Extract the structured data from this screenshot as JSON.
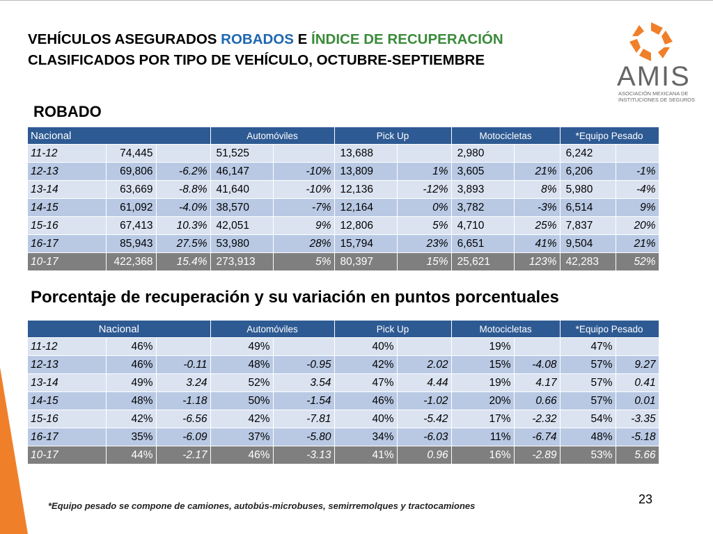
{
  "title": {
    "line1_part1": "VEHÍCULOS ASEGURADOS ",
    "line1_blue": "ROBADOS",
    "line1_part2": " E ",
    "line1_green": "ÍNDICE  DE RECUPERACIÓN",
    "line2": "CLASIFICADOS POR TIPO DE VEHÍCULO, OCTUBRE-SEPTIEMBRE"
  },
  "logo": {
    "word": "AMIS",
    "sub_line1": "ASOCIACIÓN MEXICANA DE",
    "sub_line2": "INSTITUCIONES DE SEGUROS",
    "accent": "#f07f2a"
  },
  "robado": {
    "heading": "ROBADO",
    "headers": [
      "Nacional",
      "Automóviles",
      "Pick Up",
      "Motocicletas",
      "*Equipo Pesado"
    ],
    "rows": [
      {
        "yr": "11-12",
        "nac": "74,445",
        "nac_v": "",
        "aut": "51,525",
        "aut_v": "",
        "pick": "13,688",
        "pick_v": "",
        "moto": "2,980",
        "moto_v": "",
        "eq": "6,242",
        "eq_v": ""
      },
      {
        "yr": "12-13",
        "nac": "69,806",
        "nac_v": "-6.2%",
        "aut": "46,147",
        "aut_v": "-10%",
        "pick": "13,809",
        "pick_v": "1%",
        "moto": "3,605",
        "moto_v": "21%",
        "eq": "6,206",
        "eq_v": "-1%"
      },
      {
        "yr": "13-14",
        "nac": "63,669",
        "nac_v": "-8.8%",
        "aut": "41,640",
        "aut_v": "-10%",
        "pick": "12,136",
        "pick_v": "-12%",
        "moto": "3,893",
        "moto_v": "8%",
        "eq": "5,980",
        "eq_v": "-4%"
      },
      {
        "yr": "14-15",
        "nac": "61,092",
        "nac_v": "-4.0%",
        "aut": "38,570",
        "aut_v": "-7%",
        "pick": "12,164",
        "pick_v": "0%",
        "moto": "3,782",
        "moto_v": "-3%",
        "eq": "6,514",
        "eq_v": "9%"
      },
      {
        "yr": "15-16",
        "nac": "67,413",
        "nac_v": "10.3%",
        "aut": "42,051",
        "aut_v": "9%",
        "pick": "12,806",
        "pick_v": "5%",
        "moto": "4,710",
        "moto_v": "25%",
        "eq": "7,837",
        "eq_v": "20%"
      },
      {
        "yr": "16-17",
        "nac": "85,943",
        "nac_v": "27.5%",
        "aut": "53,980",
        "aut_v": "28%",
        "pick": "15,794",
        "pick_v": "23%",
        "moto": "6,651",
        "moto_v": "41%",
        "eq": "9,504",
        "eq_v": "21%"
      },
      {
        "yr": "10-17",
        "nac": "422,368",
        "nac_v": "15.4%",
        "aut": "273,913",
        "aut_v": "5%",
        "pick": "80,397",
        "pick_v": "15%",
        "moto": "25,621",
        "moto_v": "123%",
        "eq": "42,283",
        "eq_v": "52%"
      }
    ]
  },
  "recuperacion": {
    "heading": "Porcentaje  de recuperación y su variación en puntos porcentuales",
    "headers": [
      "Nacional",
      "Automóviles",
      "Pick Up",
      "Motocicletas",
      "*Equipo Pesado"
    ],
    "rows": [
      {
        "yr": "11-12",
        "nac": "46%",
        "nac_v": "",
        "aut": "49%",
        "aut_v": "",
        "pick": "40%",
        "pick_v": "",
        "moto": "19%",
        "moto_v": "",
        "eq": "47%",
        "eq_v": ""
      },
      {
        "yr": "12-13",
        "nac": "46%",
        "nac_v": "-0.11",
        "aut": "48%",
        "aut_v": "-0.95",
        "pick": "42%",
        "pick_v": "2.02",
        "moto": "15%",
        "moto_v": "-4.08",
        "eq": "57%",
        "eq_v": "9.27"
      },
      {
        "yr": "13-14",
        "nac": "49%",
        "nac_v": "3.24",
        "aut": "52%",
        "aut_v": "3.54",
        "pick": "47%",
        "pick_v": "4.44",
        "moto": "19%",
        "moto_v": "4.17",
        "eq": "57%",
        "eq_v": "0.41"
      },
      {
        "yr": "14-15",
        "nac": "48%",
        "nac_v": "-1.18",
        "aut": "50%",
        "aut_v": "-1.54",
        "pick": "46%",
        "pick_v": "-1.02",
        "moto": "20%",
        "moto_v": "0.66",
        "eq": "57%",
        "eq_v": "0.01"
      },
      {
        "yr": "15-16",
        "nac": "42%",
        "nac_v": "-6.56",
        "aut": "42%",
        "aut_v": "-7.81",
        "pick": "40%",
        "pick_v": "-5.42",
        "moto": "17%",
        "moto_v": "-2.32",
        "eq": "54%",
        "eq_v": "-3.35"
      },
      {
        "yr": "16-17",
        "nac": "35%",
        "nac_v": "-6.09",
        "aut": "37%",
        "aut_v": "-5.80",
        "pick": "34%",
        "pick_v": "-6.03",
        "moto": "11%",
        "moto_v": "-6.74",
        "eq": "48%",
        "eq_v": "-5.18"
      },
      {
        "yr": "10-17",
        "nac": "44%",
        "nac_v": "-2.17",
        "aut": "46%",
        "aut_v": "-3.13",
        "pick": "41%",
        "pick_v": "0.96",
        "moto": "16%",
        "moto_v": "-2.89",
        "eq": "53%",
        "eq_v": "5.66"
      }
    ]
  },
  "page_number": "23",
  "footnote": "*Equipo pesado se compone de camiones,  autobús-microbuses, semirremolques y tractocamiones",
  "colors": {
    "header_blue": "#2e5a93",
    "row_light": "#dbe3f1",
    "row_dark": "#b9c9e4",
    "total_gray": "#7f7f7f",
    "title_blue": "#1e67b0",
    "title_green": "#3a8a3a"
  }
}
